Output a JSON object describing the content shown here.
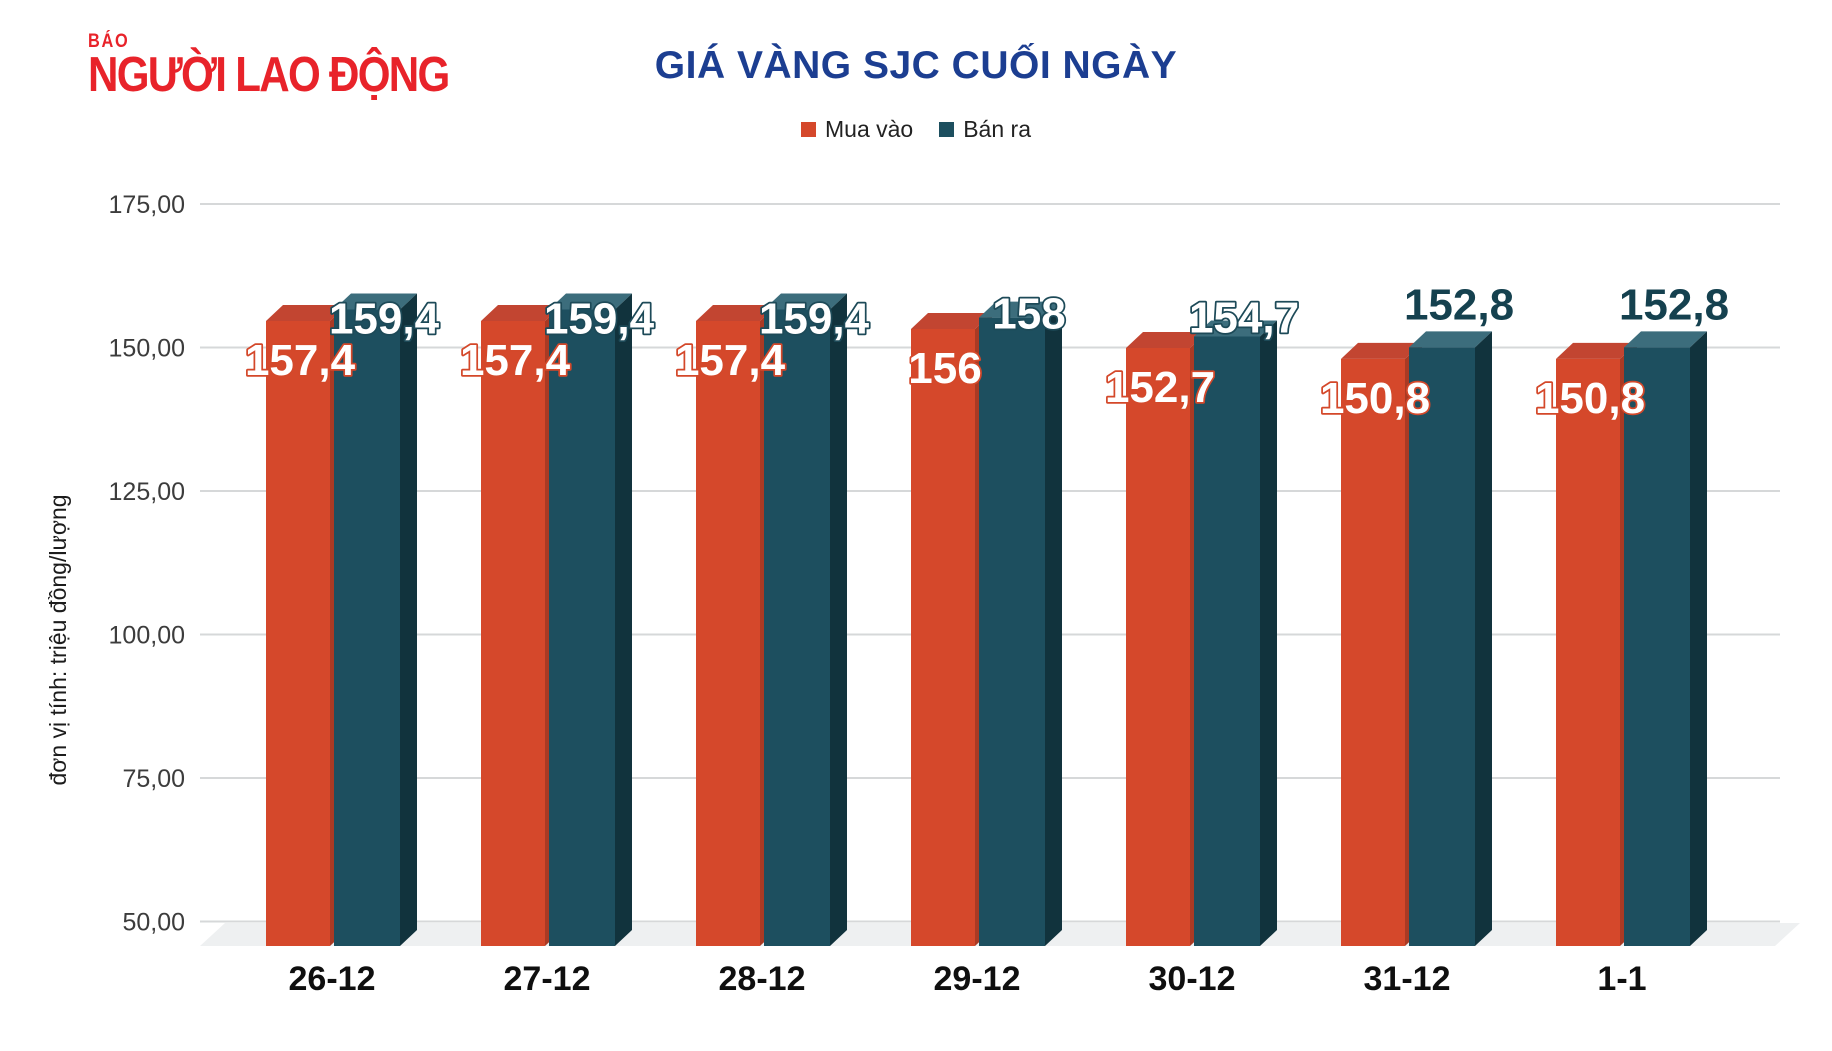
{
  "header": {
    "logo_line1": "BÁO",
    "logo_line2": "NGƯỜI LAO ĐỘNG",
    "logo_color": "#e8232a"
  },
  "chart_data": {
    "type": "bar",
    "style": "3d-column",
    "title": "GIÁ VÀNG SJC CUỐI NGÀY",
    "title_color": "#1c3e91",
    "categories": [
      "26-12",
      "27-12",
      "28-12",
      "29-12",
      "30-12",
      "31-12",
      "1-1"
    ],
    "series": [
      {
        "name": "Mua vào",
        "values": [
          157.4,
          157.4,
          157.4,
          156,
          152.7,
          150.8,
          150.8
        ],
        "labels": [
          "157,4",
          "157,4",
          "157,4",
          "156",
          "152,7",
          "150,8",
          "150,8"
        ],
        "colors": {
          "front": "#d5482b",
          "top": "#c24531",
          "side": "#a93a24",
          "label_stroke": "#d4482a"
        }
      },
      {
        "name": "Bán ra",
        "values": [
          159.4,
          159.4,
          159.4,
          158,
          154.7,
          152.8,
          152.8
        ],
        "labels": [
          "159,4",
          "159,4",
          "159,4",
          "158",
          "154,7",
          "152,8",
          "152,8"
        ],
        "colors": {
          "front": "#1d4f5f",
          "top": "#3c6d7c",
          "side": "#11333d",
          "label_stroke": "#1d4a58",
          "label_solid": "#15414f"
        }
      }
    ],
    "ylabel": "đơn vị tính: triệu đồng/lượng",
    "ylim": [
      50,
      175
    ],
    "yticks": [
      {
        "value": 175,
        "label": "175,00"
      },
      {
        "value": 150,
        "label": "150,00"
      },
      {
        "value": 125,
        "label": "125,00"
      },
      {
        "value": 100,
        "label": "100,00"
      },
      {
        "value": 75,
        "label": "75,00"
      },
      {
        "value": 50,
        "label": "50,00"
      }
    ],
    "grid": true,
    "legend_position": "top",
    "grid_color": "#d6d8d9",
    "floor_color": "#eef0f1",
    "axis_text_color": "#3c3c3c",
    "category_text_color": "#0f0f0f"
  }
}
